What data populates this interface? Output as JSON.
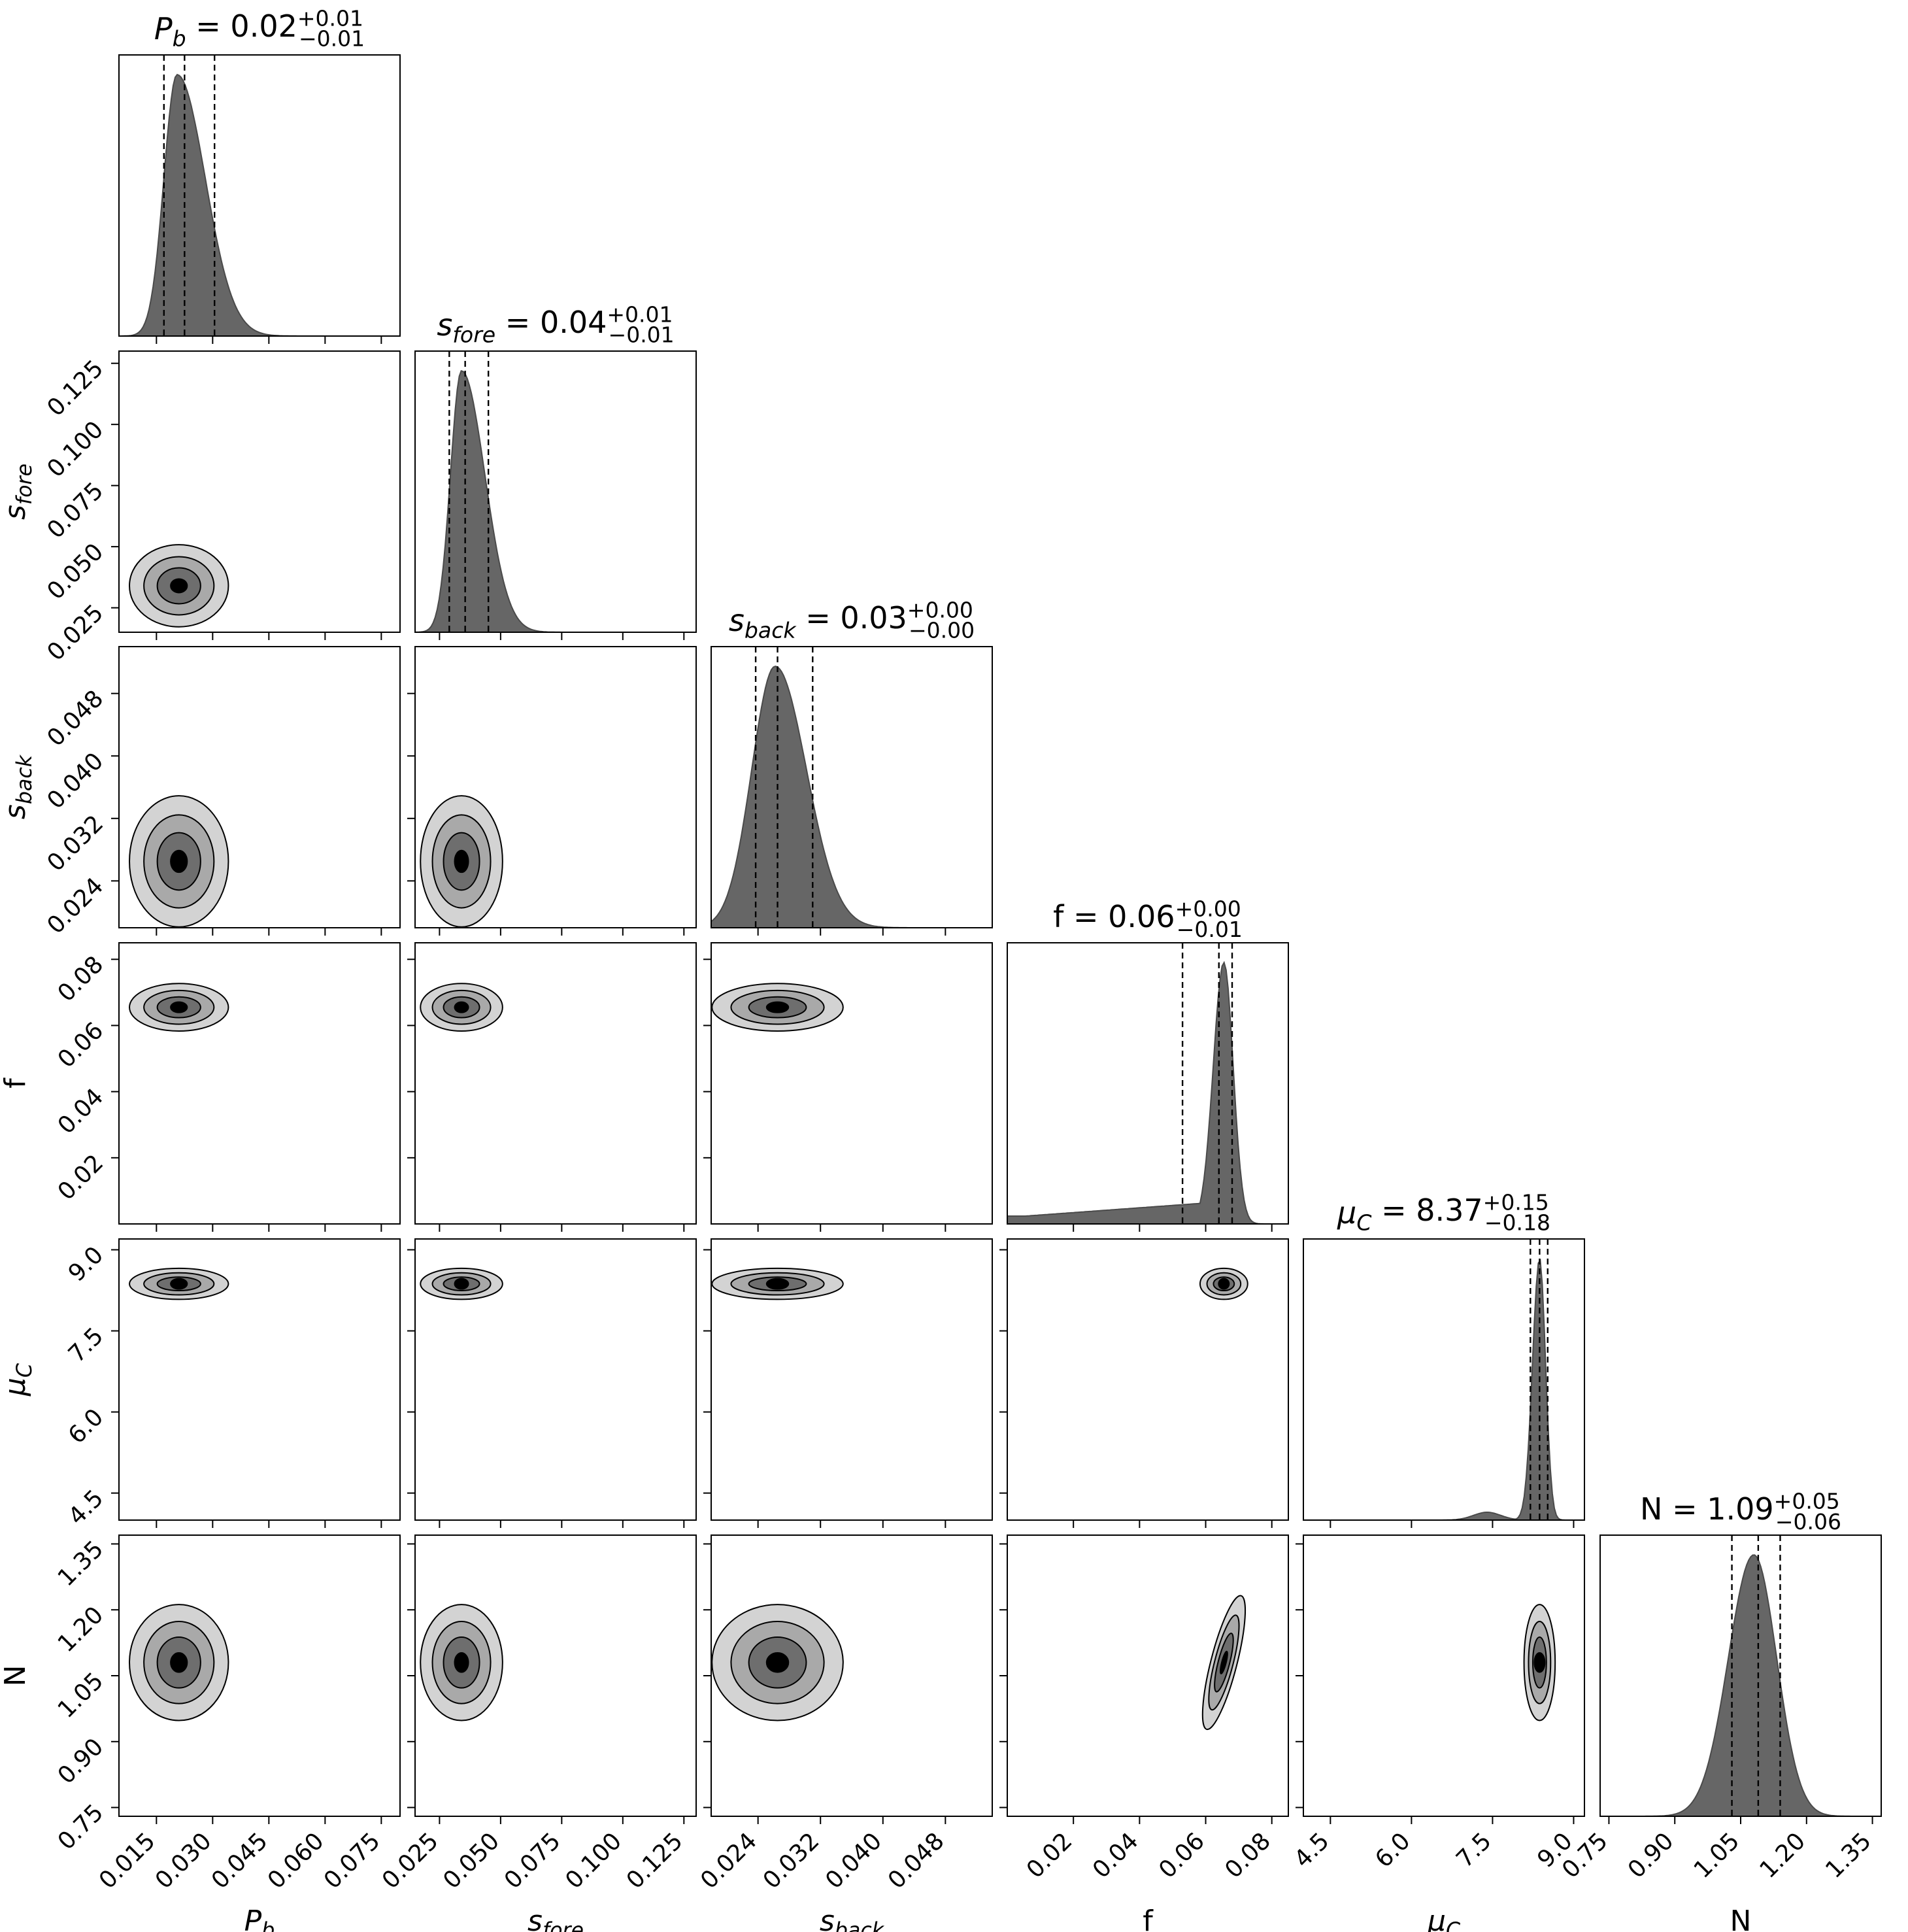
{
  "chart_data": {
    "type": "corner",
    "parameters": [
      {
        "key": "Pb",
        "symbol": "P",
        "sub": "b",
        "italic": true,
        "range": [
          0.005,
          0.08
        ],
        "ticks": [
          0.015,
          0.03,
          0.045,
          0.06,
          0.075
        ],
        "tick_labels": [
          "0.015",
          "0.030",
          "0.045",
          "0.060",
          "0.075"
        ],
        "median": 0.02,
        "plus": 0.01,
        "minus": 0.01,
        "title_plus": "+0.01",
        "title_minus": "−0.01",
        "title_value": "0.02",
        "quantiles": [
          0.017,
          0.0225,
          0.0305
        ],
        "hist": {
          "peak": 0.0205,
          "sigma_left": 0.0035,
          "sigma_right": 0.0075
        },
        "mode": 0.021
      },
      {
        "key": "sfore",
        "symbol": "s",
        "sub": "fore",
        "italic": true,
        "range": [
          0.015,
          0.13
        ],
        "ticks": [
          0.025,
          0.05,
          0.075,
          0.1,
          0.125
        ],
        "tick_labels": [
          "0.025",
          "0.050",
          "0.075",
          "0.100",
          "0.125"
        ],
        "median": 0.04,
        "plus": 0.01,
        "minus": 0.01,
        "title_plus": "+0.01",
        "title_minus": "−0.01",
        "title_value": "0.04",
        "quantiles": [
          0.029,
          0.0355,
          0.045
        ],
        "hist": {
          "peak": 0.034,
          "sigma_left": 0.0045,
          "sigma_right": 0.0095
        },
        "mode": 0.034
      },
      {
        "key": "sback",
        "symbol": "s",
        "sub": "back",
        "italic": true,
        "range": [
          0.018,
          0.054
        ],
        "ticks": [
          0.024,
          0.032,
          0.04,
          0.048
        ],
        "tick_labels": [
          "0.024",
          "0.032",
          "0.040",
          "0.048"
        ],
        "median": 0.03,
        "plus": 0.0,
        "minus": 0.0,
        "title_plus": "+0.00",
        "title_minus": "−0.00",
        "title_value": "0.03",
        "quantiles": [
          0.0237,
          0.0265,
          0.031
        ],
        "hist": {
          "peak": 0.0262,
          "sigma_left": 0.003,
          "sigma_right": 0.004
        },
        "mode": 0.0265
      },
      {
        "key": "f",
        "symbol": "f",
        "sub": "",
        "italic": false,
        "range": [
          0.0,
          0.085
        ],
        "ticks": [
          0.02,
          0.04,
          0.06,
          0.08
        ],
        "tick_labels": [
          "0.02",
          "0.04",
          "0.06",
          "0.08"
        ],
        "median": 0.06,
        "plus": 0.0,
        "minus": 0.01,
        "title_plus": "+0.00",
        "title_minus": "−0.01",
        "title_value": "0.06",
        "quantiles": [
          0.053,
          0.064,
          0.068
        ],
        "hist": {
          "peak": 0.0655,
          "sigma_left": 0.0032,
          "sigma_right": 0.0028
        },
        "mode": 0.0655
      },
      {
        "key": "muC",
        "symbol": "μ",
        "sub": "C",
        "italic": true,
        "range": [
          4.0,
          9.2
        ],
        "ticks": [
          4.5,
          6.0,
          7.5,
          9.0
        ],
        "tick_labels": [
          "4.5",
          "6.0",
          "7.5",
          "9.0"
        ],
        "median": 8.37,
        "plus": 0.15,
        "minus": 0.18,
        "title_plus": "+0.15",
        "title_minus": "−0.18",
        "title_value": "8.37",
        "quantiles": [
          8.2,
          8.37,
          8.52
        ],
        "hist": {
          "peak": 8.37,
          "sigma_left": 0.13,
          "sigma_right": 0.11
        },
        "mode": 8.37
      },
      {
        "key": "N",
        "symbol": "N",
        "sub": "",
        "italic": false,
        "range": [
          0.73,
          1.37
        ],
        "ticks": [
          0.75,
          0.9,
          1.05,
          1.2,
          1.35
        ],
        "tick_labels": [
          "0.75",
          "0.90",
          "1.05",
          "1.20",
          "1.35"
        ],
        "median": 1.09,
        "plus": 0.05,
        "minus": 0.06,
        "title_plus": "+0.05",
        "title_minus": "−0.06",
        "title_value": "1.09",
        "quantiles": [
          1.03,
          1.09,
          1.14
        ],
        "hist": {
          "peak": 1.08,
          "sigma_left": 0.058,
          "sigma_right": 0.052
        },
        "mode": 1.08
      }
    ],
    "axis_labels": [
      {
        "symbol": "P",
        "sub": "b"
      },
      {
        "symbol": "s",
        "sub": "fore"
      },
      {
        "symbol": "s",
        "sub": "back"
      },
      {
        "symbol": "f",
        "sub": ""
      },
      {
        "symbol": "μ",
        "sub": "C"
      },
      {
        "symbol": "N",
        "sub": ""
      }
    ],
    "contour_levels": 4,
    "contour_fill_colors": [
      "#d3d3d3",
      "#a9a9a9",
      "#6e6e6e",
      "#000000"
    ],
    "hist_color": "#666666",
    "median_line_style": "dashed"
  }
}
